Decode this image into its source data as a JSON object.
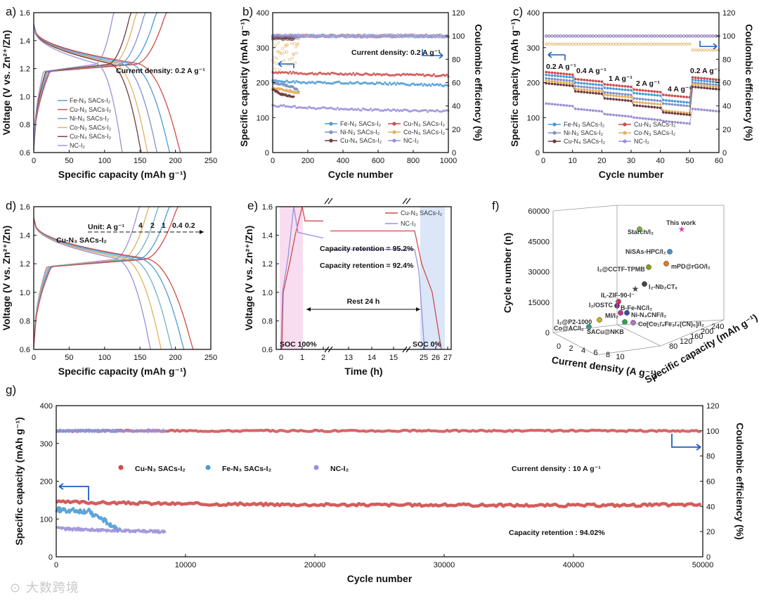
{
  "colors": {
    "Fe": "#4a9bd6",
    "Cu": "#cf4b4b",
    "Ni": "#7d93c8",
    "Co": "#e3b05e",
    "CuN4": "#6e3b3b",
    "NC": "#9c8fd8",
    "axis": "#111111",
    "arrow": "#1f5fbf",
    "shadePink": "#f3c6e6",
    "shadeBlue": "#c3d6f5"
  },
  "watermark": "大数跨境",
  "panels": {
    "a": {
      "label": "a)",
      "xlabel": "Specific capacity (mAh g⁻¹)",
      "ylabel": "Voltage (V vs. Zn²⁺/Zn)",
      "xticks": [
        "0",
        "50",
        "100",
        "150",
        "200",
        "250"
      ],
      "yticks": [
        "0.6",
        "0.8",
        "1.0",
        "1.2",
        "1.4",
        "1.6"
      ],
      "xlim": [
        0,
        280
      ],
      "ylim": [
        0.6,
        1.6
      ],
      "annotation": "Current density: 0.2 A g⁻¹",
      "legend": [
        "Fe-N₃ SACs-I₂",
        "Cu-N₃ SACs-I₂",
        "Ni-N₃ SACs-I₂",
        "Co-N₃ SACs-I₂",
        "Cu-N₄ SACs-I₂",
        "NC-I₂"
      ],
      "legend_colors": [
        "Fe",
        "Cu",
        "Ni",
        "Co",
        "CuN4",
        "NC"
      ]
    },
    "b": {
      "label": "b)",
      "xlabel": "Cycle number",
      "ylabel": "Specific capacity (mAh g⁻¹)",
      "ylabel2": "Coulombic efficiency (%)",
      "xticks": [
        "0",
        "200",
        "400",
        "600",
        "800",
        "1000"
      ],
      "yticks": [
        "0",
        "100",
        "200",
        "300",
        "400"
      ],
      "yticks2": [
        "0",
        "20",
        "40",
        "60",
        "80",
        "100",
        "120"
      ],
      "annotation": "Current density: 0.2 A g⁻¹",
      "legend": [
        "Fe-N₃ SACs-I₂",
        "Cu-N₃ SACs-I₂",
        "Ni-N₃ SACs-I₂",
        "Co-N₃ SACs-I₂",
        "Cu-N₄ SACs-I₂",
        "NC-I₂"
      ],
      "legend_colors": [
        "Fe",
        "Cu",
        "Ni",
        "Co",
        "CuN4",
        "NC"
      ]
    },
    "c": {
      "label": "c)",
      "xlabel": "Cycle number",
      "ylabel": "Specific capacity (mAh g⁻¹)",
      "ylabel2": "Coulombic efficiency (%)",
      "xticks": [
        "0",
        "10",
        "20",
        "30",
        "40",
        "50",
        "60"
      ],
      "yticks": [
        "0",
        "100",
        "200",
        "300",
        "400"
      ],
      "yticks2": [
        "0",
        "20",
        "40",
        "60",
        "80",
        "100",
        "120"
      ],
      "rate_labels": [
        "0.2 A g⁻¹",
        "0.4 A g⁻¹",
        "1 A g⁻¹",
        "2 A g⁻¹",
        "4 A g⁻¹",
        "0.2 A g⁻¹"
      ],
      "legend": [
        "Fe-N₃ SACs-I₂",
        "Cu-N₃ SACs-I₂",
        "Ni-N₃ SACs-I₂",
        "Co-N₃ SACs-I₂",
        "Cu-N₄ SACs-I₂",
        "NC-I₂"
      ],
      "legend_colors": [
        "Fe",
        "Cu",
        "Ni",
        "Co",
        "CuN4",
        "NC"
      ]
    },
    "d": {
      "label": "d)",
      "xlabel": "Specific capacity (mAh g⁻¹)",
      "ylabel": "Voltage (V vs. Zn²⁺/Zn)",
      "xticks": [
        "0",
        "50",
        "100",
        "150",
        "200",
        "250"
      ],
      "yticks": [
        "0.6",
        "0.8",
        "1.0",
        "1.2",
        "1.4",
        "1.6"
      ],
      "unit_label": "Unit: A g⁻¹",
      "sample_label": "Cu-N₃ SACs-I₂",
      "rates": [
        "4",
        "2",
        "1",
        "0.4",
        "0.2"
      ],
      "rate_colors": [
        "#9c8fd8",
        "#e3b05e",
        "#6fb0c8",
        "#4a9bd6",
        "#cf4b4b"
      ]
    },
    "e": {
      "label": "e)",
      "xlabel": "Time (h)",
      "ylabel": "Voltage (V vs. Zn²⁺/Zn)",
      "xticks": [
        "0",
        "1",
        "2",
        "13",
        "14",
        "15",
        "25",
        "26",
        "27"
      ],
      "yticks": [
        "0.6",
        "0.8",
        "1.0",
        "1.2",
        "1.4",
        "1.6"
      ],
      "legend": [
        "Cu-N₃ SACs-I₂",
        "NC-I₂"
      ],
      "retention_cu": "Capacity retention = 95.2%",
      "retention_nc": "Capacity retention = 92.4%",
      "rest_label": "Rest 24 h",
      "soc_start": "SOC 100%",
      "soc_end": "SOC 0%"
    },
    "f": {
      "label": "f)",
      "xlabel": "Current density (A g⁻¹)",
      "ylabel": "Cycle number (n)",
      "zlabel": "Specific capacity (mAh g⁻¹)",
      "xticks": [
        "0",
        "2",
        "4",
        "6",
        "8",
        "10"
      ],
      "yticks": [
        "0",
        "15000",
        "30000",
        "45000",
        "60000"
      ],
      "zticks": [
        "80",
        "120",
        "160",
        "200",
        "240"
      ],
      "points": [
        {
          "label": "This work",
          "color": "#e040c0",
          "star": true
        },
        {
          "label": "Starch/I₂",
          "color": "#6db33f"
        },
        {
          "label": "NiSAs-HPC/I₂",
          "color": "#4a8fc8"
        },
        {
          "label": "mPD@rGO/I₂",
          "color": "#e07a1f"
        },
        {
          "label": "I₂@CCTF-TPMB",
          "color": "#8a9a1f"
        },
        {
          "label": "I₂-Nb₂CTₓ",
          "color": "#444444"
        },
        {
          "label": "IL-ZIF-90-I⁻",
          "color": "#444444",
          "star": true
        },
        {
          "label": "I₂/OSTC",
          "color": "#d0305f"
        },
        {
          "label": "B-Fe-NC/I₂",
          "color": "#7a2a7a"
        },
        {
          "label": "MI/I₂",
          "color": "#c0308a"
        },
        {
          "label": "Ni-N₄CNF/I₂",
          "color": "#3050a0"
        },
        {
          "label": "I₂@P2-1000",
          "color": "#c8b020"
        },
        {
          "label": "Co[Co₁/₄Fe₃/₄(CN)₆]/I₂",
          "color": "#b070c8"
        },
        {
          "label": "Co@AC/I₂",
          "color": "#20a080"
        },
        {
          "label": "SACu@NKB",
          "color": "#30a050"
        }
      ]
    },
    "g": {
      "label": "g)",
      "xlabel": "Cycle number",
      "ylabel": "Specific capacity (mAh g⁻¹)",
      "ylabel2": "Coulombic efficiency (%)",
      "xticks": [
        "0",
        "10000",
        "20000",
        "30000",
        "40000",
        "50000"
      ],
      "yticks": [
        "0",
        "100",
        "200",
        "300",
        "400"
      ],
      "yticks2": [
        "0",
        "20",
        "40",
        "60",
        "80",
        "100",
        "120"
      ],
      "legend": [
        "Cu-N₃ SACs-I₂",
        "Fe-N₃ SACs-I₂",
        "NC-I₂"
      ],
      "legend_colors": [
        "Cu",
        "Fe",
        "NC"
      ],
      "annotation": "Current density : 10 A g⁻¹",
      "retention": "Capacity retention : 94.02%"
    }
  },
  "chart_data": [
    {
      "panel": "a",
      "type": "line",
      "title": "",
      "xlabel": "Specific capacity (mAh g⁻¹)",
      "ylabel": "Voltage (V vs. Zn²⁺/Zn)",
      "xlim": [
        0,
        280
      ],
      "ylim": [
        0.6,
        1.6
      ],
      "series": [
        {
          "name": "Fe-N₃ SACs-I₂",
          "discharge_capacity": 215
        },
        {
          "name": "Cu-N₃ SACs-I₂",
          "discharge_capacity": 232
        },
        {
          "name": "Ni-N₃ SACs-I₂",
          "discharge_capacity": 195
        },
        {
          "name": "Co-N₃ SACs-I₂",
          "discharge_capacity": 180
        },
        {
          "name": "Cu-N₄ SACs-I₂",
          "discharge_capacity": 170
        },
        {
          "name": "NC-I₂",
          "discharge_capacity": 140
        }
      ]
    },
    {
      "panel": "b",
      "type": "scatter",
      "xlabel": "Cycle number",
      "ylabel": "Specific capacity (mAh g⁻¹)",
      "ylabel2": "Coulombic efficiency (%)",
      "xlim": [
        0,
        1000
      ],
      "ylim": [
        0,
        400
      ],
      "ylim2": [
        0,
        120
      ],
      "series": [
        {
          "name": "Cu-N₃ SACs-I₂",
          "x": [
            0,
            200,
            400,
            600,
            800,
            1000
          ],
          "y": [
            230,
            226,
            225,
            224,
            222,
            220
          ],
          "ce": 100
        },
        {
          "name": "Fe-N₃ SACs-I₂",
          "x": [
            0,
            200,
            400,
            600,
            800,
            1000
          ],
          "y": [
            205,
            200,
            200,
            198,
            195,
            192
          ],
          "ce": 100
        },
        {
          "name": "Ni-N₃ SACs-I₂",
          "x": [
            0,
            100,
            150
          ],
          "y": [
            200,
            190,
            175
          ],
          "ce": 99
        },
        {
          "name": "Co-N₃ SACs-I₂",
          "x": [
            0,
            100,
            150
          ],
          "y": [
            185,
            175,
            170
          ],
          "ce": 85
        },
        {
          "name": "Cu-N₄ SACs-I₂",
          "x": [
            0,
            60,
            120
          ],
          "y": [
            180,
            165,
            160
          ],
          "ce": 98
        },
        {
          "name": "NC-I₂",
          "x": [
            0,
            200,
            400,
            600,
            800,
            1000
          ],
          "y": [
            135,
            128,
            125,
            122,
            120,
            118
          ],
          "ce": 100
        }
      ]
    },
    {
      "panel": "c",
      "type": "scatter",
      "xlabel": "Cycle number",
      "ylabel": "Specific capacity (mAh g⁻¹)",
      "ylabel2": "Coulombic efficiency (%)",
      "xlim": [
        0,
        60
      ],
      "ylim": [
        0,
        400
      ],
      "ylim2": [
        0,
        120
      ],
      "categories": [
        "0.2 A g⁻¹",
        "0.4 A g⁻¹",
        "1 A g⁻¹",
        "2 A g⁻¹",
        "4 A g⁻¹",
        "0.2 A g⁻¹"
      ],
      "series": [
        {
          "name": "Cu-N₃ SACs-I₂",
          "values": [
            230,
            210,
            195,
            180,
            165,
            215
          ]
        },
        {
          "name": "Fe-N₃ SACs-I₂",
          "values": [
            222,
            200,
            185,
            170,
            150,
            208
          ]
        },
        {
          "name": "Ni-N₃ SACs-I₂",
          "values": [
            212,
            190,
            172,
            155,
            140,
            200
          ]
        },
        {
          "name": "Co-N₃ SACs-I₂",
          "values": [
            205,
            182,
            165,
            145,
            120,
            195
          ]
        },
        {
          "name": "Cu-N₄ SACs-I₂",
          "values": [
            198,
            175,
            155,
            135,
            115,
            188
          ]
        },
        {
          "name": "NC-I₂",
          "values": [
            140,
            125,
            110,
            100,
            90,
            125
          ]
        }
      ]
    },
    {
      "panel": "d",
      "type": "line",
      "xlabel": "Specific capacity (mAh g⁻¹)",
      "ylabel": "Voltage (V vs. Zn²⁺/Zn)",
      "xlim": [
        0,
        250
      ],
      "ylim": [
        0.6,
        1.6
      ],
      "series": [
        {
          "name": "4",
          "discharge_capacity": 165
        },
        {
          "name": "2",
          "discharge_capacity": 180
        },
        {
          "name": "1",
          "discharge_capacity": 195
        },
        {
          "name": "0.4",
          "discharge_capacity": 212
        },
        {
          "name": "0.2",
          "discharge_capacity": 225
        }
      ]
    },
    {
      "panel": "e",
      "type": "line",
      "xlabel": "Time (h)",
      "ylabel": "Voltage (V vs. Zn²⁺/Zn)",
      "ylim": [
        0.6,
        1.6
      ],
      "series": [
        {
          "name": "Cu-N₃ SACs-I₂",
          "rest_voltage": 1.43,
          "retention": 95.2
        },
        {
          "name": "NC-I₂",
          "rest_voltage": 1.3,
          "retention": 92.4
        }
      ]
    },
    {
      "panel": "f",
      "type": "scatter",
      "xlabel": "Current density (A g⁻¹)",
      "ylabel": "Cycle number (n)",
      "zlabel": "Specific capacity (mAh g⁻¹)",
      "ylim": [
        0,
        60000
      ]
    },
    {
      "panel": "g",
      "type": "scatter",
      "xlabel": "Cycle number",
      "ylabel": "Specific capacity (mAh g⁻¹)",
      "ylabel2": "Coulombic efficiency (%)",
      "xlim": [
        0,
        50000
      ],
      "ylim": [
        0,
        400
      ],
      "ylim2": [
        0,
        120
      ],
      "series": [
        {
          "name": "Cu-N₃ SACs-I₂",
          "x": [
            0,
            10000,
            20000,
            30000,
            40000,
            50000
          ],
          "y": [
            145,
            140,
            138,
            137,
            136,
            138
          ],
          "ce": 100
        },
        {
          "name": "Fe-N₃ SACs-I₂",
          "x": [
            0,
            2500,
            5000
          ],
          "y": [
            125,
            120,
            70
          ],
          "ce": 100
        },
        {
          "name": "NC-I₂",
          "x": [
            0,
            4000,
            8500
          ],
          "y": [
            75,
            70,
            66
          ],
          "ce": 100
        }
      ],
      "retention": 94.02
    }
  ]
}
